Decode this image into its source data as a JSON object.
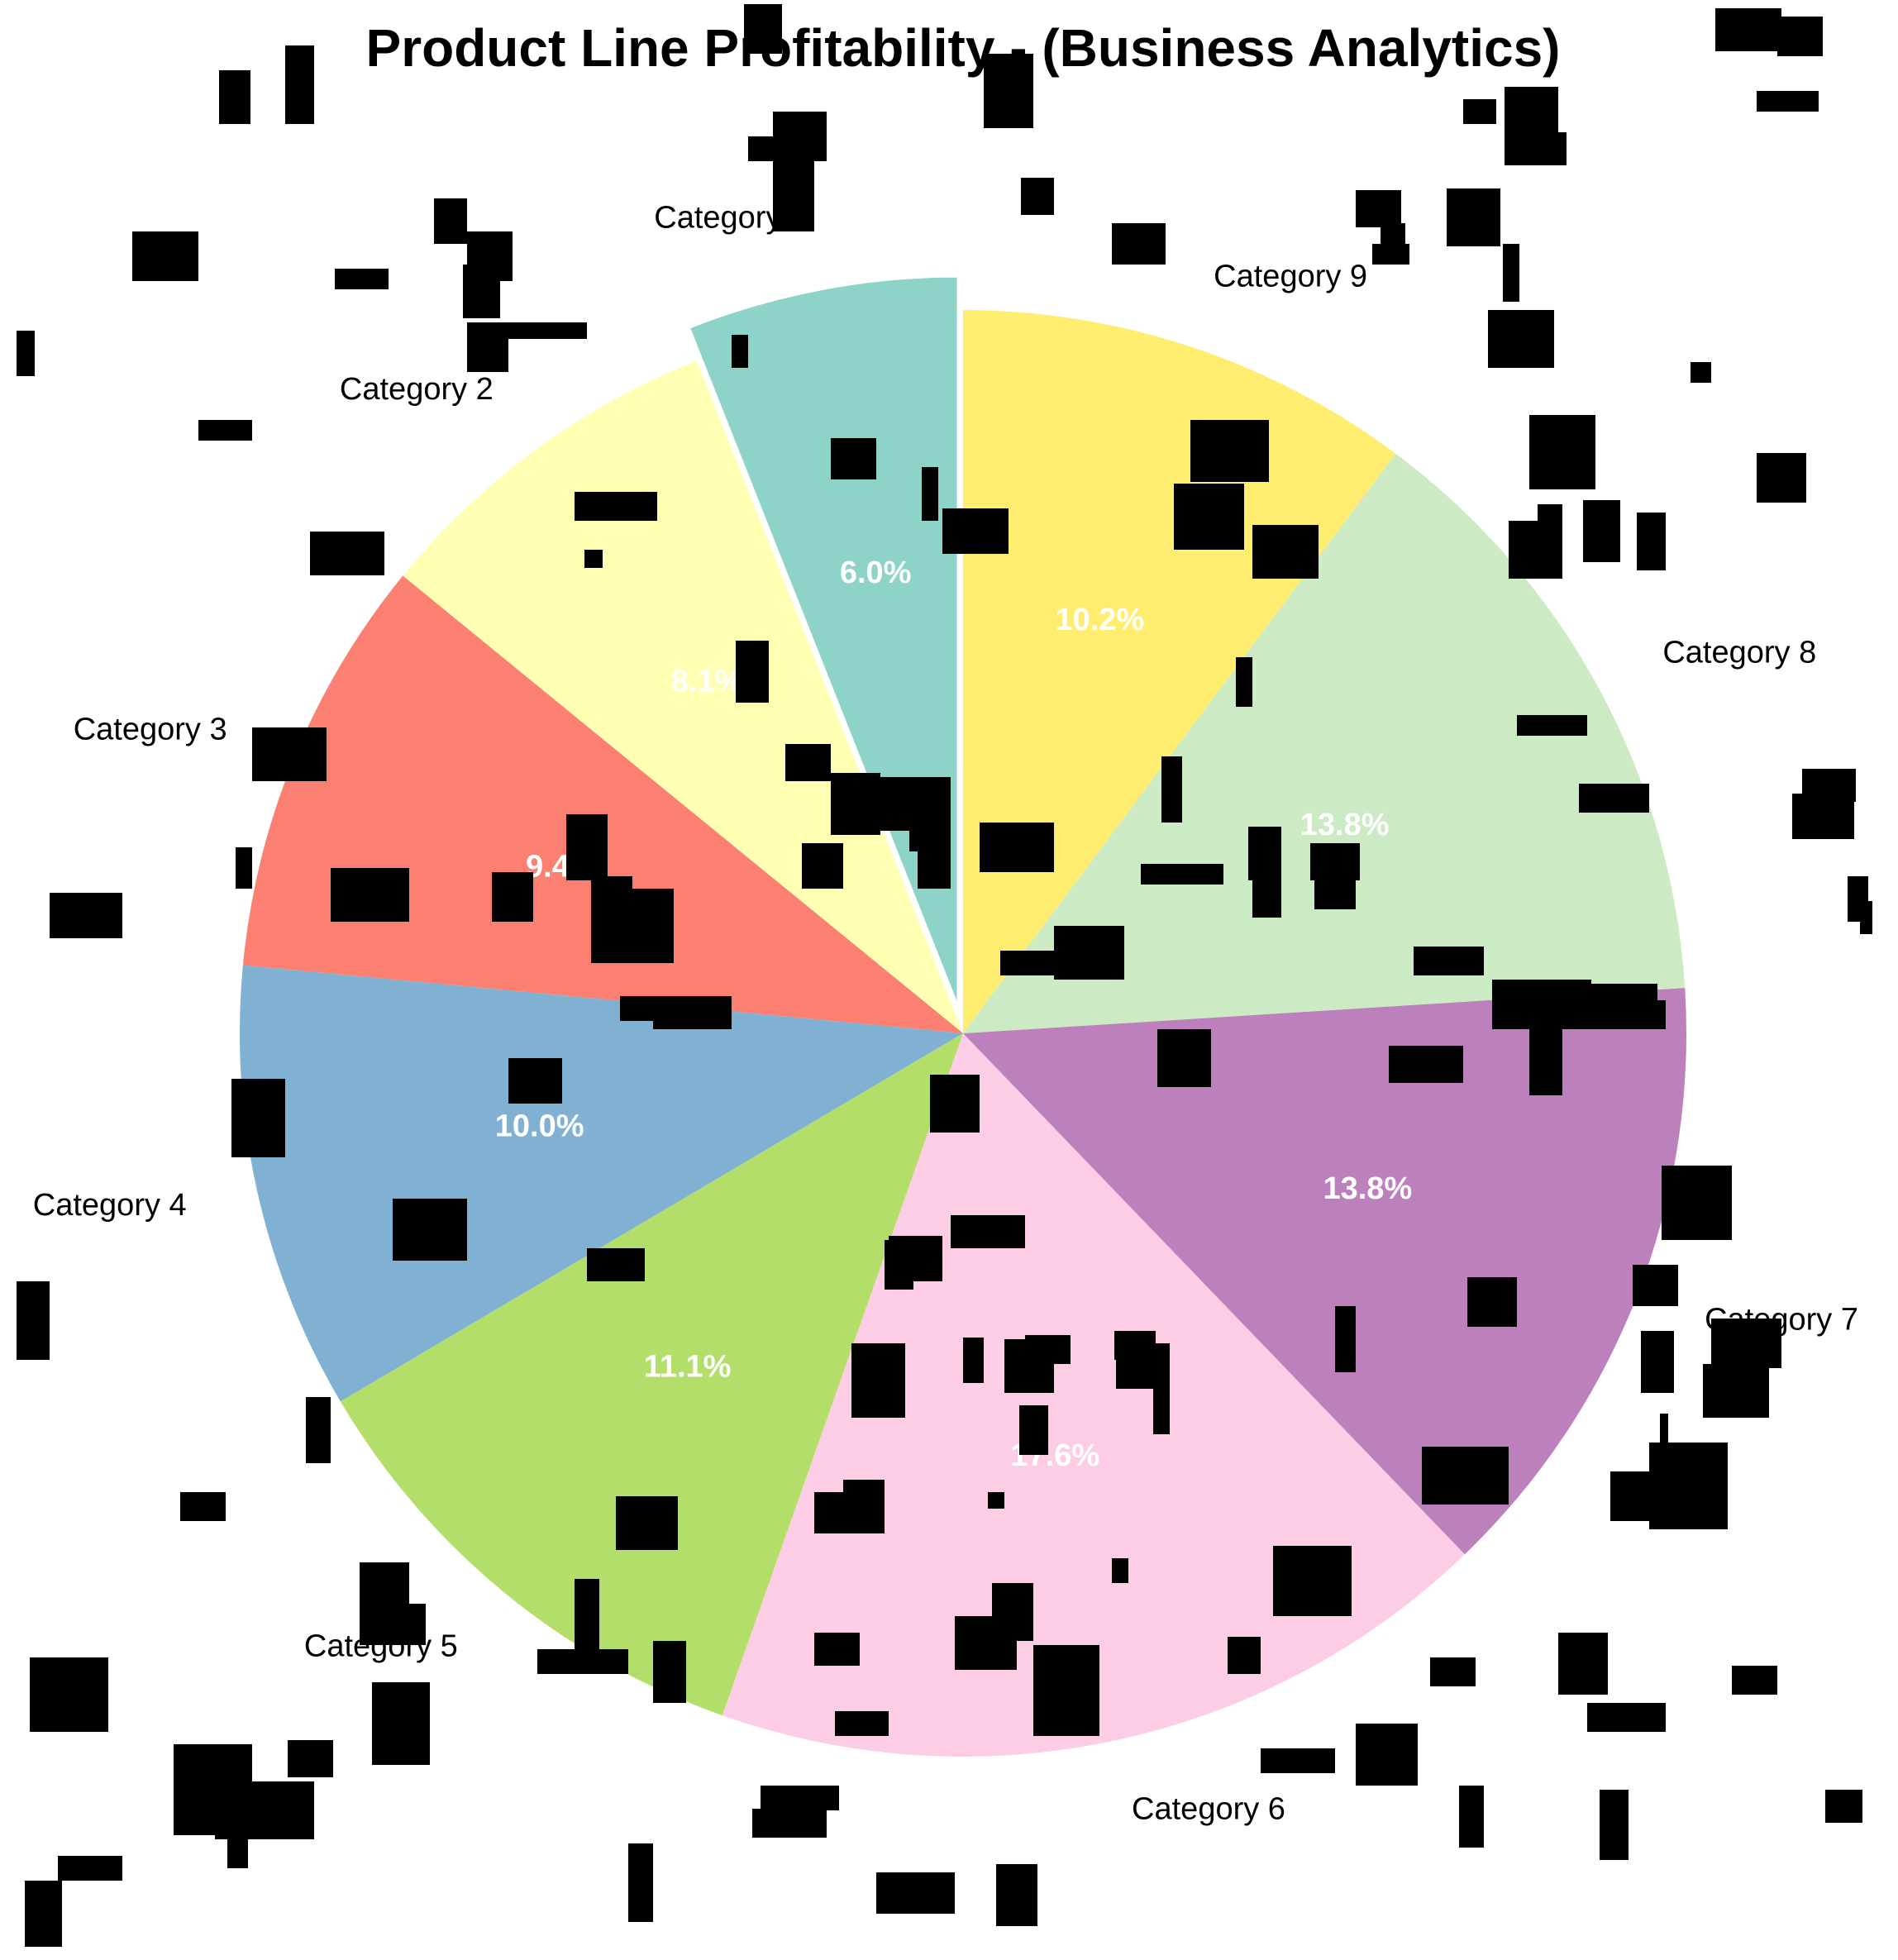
{
  "chart_data": {
    "type": "pie",
    "title": "Product Line Profitability - (Business Analytics)",
    "start_angle": 90,
    "direction": "counterclockwise",
    "categories": [
      "Category 1",
      "Category 2",
      "Category 3",
      "Category 4",
      "Category 5",
      "Category 6",
      "Category 7",
      "Category 8",
      "Category 9"
    ],
    "percent_labels": [
      "6.0%",
      "8.1%",
      "9.4%",
      "10.0%",
      "11.1%",
      "17.6%",
      "13.8%",
      "13.8%",
      "10.2%"
    ],
    "values": [
      6.0,
      8.1,
      9.4,
      10.0,
      11.1,
      17.6,
      13.8,
      13.8,
      10.2
    ],
    "colors": [
      "#8dd3c7",
      "#ffffb3",
      "#fb8072",
      "#80b1d3",
      "#b3de69",
      "#fccde5",
      "#bc80bd",
      "#ccebc5",
      "#ffed6f"
    ],
    "exploded": [
      "Category 1"
    ],
    "legend": "none"
  }
}
